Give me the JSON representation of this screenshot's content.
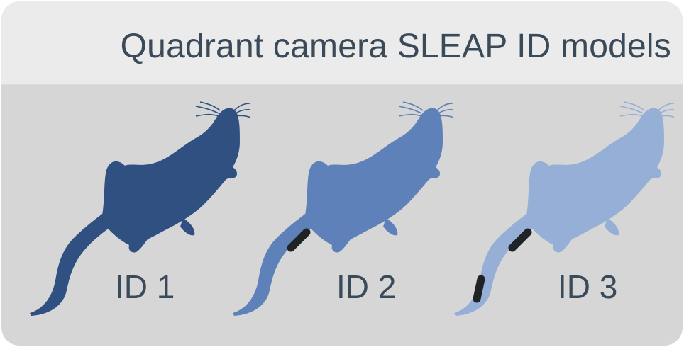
{
  "title": "Quadrant camera SLEAP ID models",
  "mice": [
    {
      "label": "ID 1",
      "color": "#2f5080",
      "tail_marks": 0
    },
    {
      "label": "ID 2",
      "color": "#5d81b8",
      "tail_marks": 1
    },
    {
      "label": "ID 3",
      "color": "#96afd6",
      "tail_marks": 2
    }
  ],
  "tail_mark_color": "#1f2326"
}
